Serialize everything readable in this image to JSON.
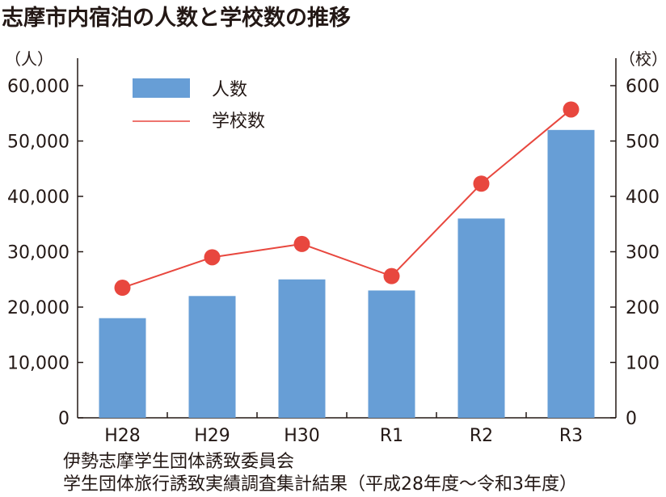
{
  "title": "志摩市内宿泊の人数と学校数の推移",
  "source": {
    "line1": "伊勢志摩学生団体誘致委員会",
    "line2": "学生団体旅行誘致実績調査集計結果（平成28年度～令和3年度）"
  },
  "colors": {
    "bar": "#679ed6",
    "line": "#e8473e",
    "axis": "#231815"
  },
  "chart_data": {
    "type": "bar",
    "categories": [
      "H28",
      "H29",
      "H30",
      "R1",
      "R2",
      "R3"
    ],
    "series": [
      {
        "name": "人数",
        "type": "bar",
        "axis": "left",
        "values": [
          18000,
          22000,
          25000,
          23000,
          36000,
          52000
        ]
      },
      {
        "name": "学校数",
        "type": "line",
        "axis": "right",
        "values": [
          235,
          290,
          314,
          256,
          423,
          557
        ]
      }
    ],
    "y_left": {
      "unit": "（人）",
      "ylim": [
        0,
        60000
      ],
      "ticks": [
        "0",
        "10,000",
        "20,000",
        "30,000",
        "40,000",
        "50,000",
        "60,000"
      ]
    },
    "y_right": {
      "unit": "（校）",
      "ylim": [
        0,
        600
      ],
      "ticks": [
        "0",
        "100",
        "200",
        "300",
        "400",
        "500",
        "600"
      ]
    },
    "legend": {
      "placement": "top-left",
      "bar_label": "人数",
      "line_label": "学校数"
    },
    "grid": false
  }
}
